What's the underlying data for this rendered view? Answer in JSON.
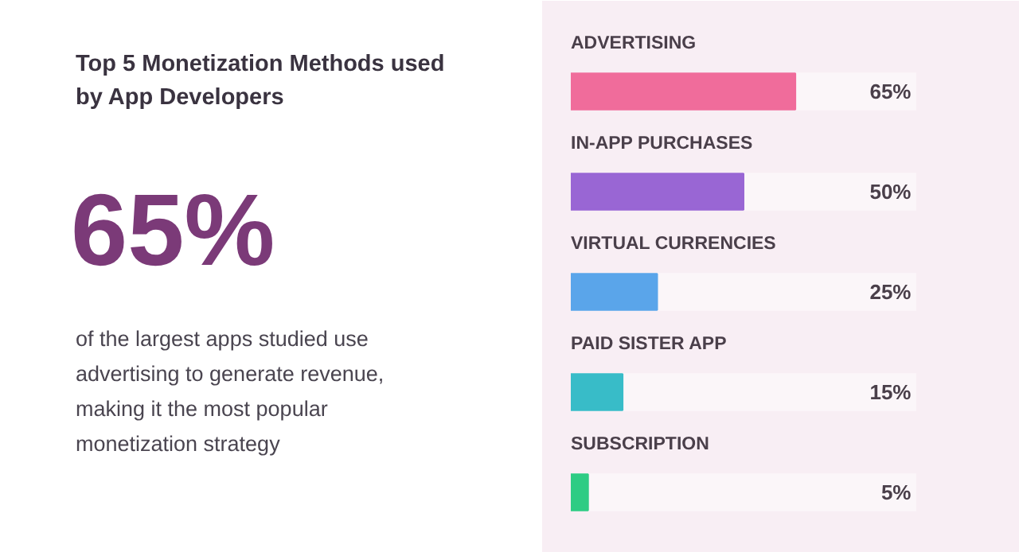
{
  "chart_data": {
    "type": "bar",
    "orientation": "horizontal",
    "title": "Top 5 Monetization Methods used by App Developers",
    "categories": [
      "ADVERTISING",
      "IN-APP PURCHASES",
      "VIRTUAL CURRENCIES",
      "PAID SISTER APP",
      "SUBSCRIPTION"
    ],
    "values": [
      65,
      50,
      25,
      15,
      5
    ],
    "colors": [
      "#f06c9b",
      "#9966d4",
      "#5aa5ea",
      "#38bcc8",
      "#2ecc84"
    ],
    "value_labels": [
      "65%",
      "50%",
      "25%",
      "15%",
      "5%"
    ],
    "xlim": [
      0,
      100
    ],
    "tick_labels": false,
    "grid": false,
    "annotations": [
      "65%",
      "of the largest apps studied use advertising to generate revenue, making it the most popular monetization strategy"
    ]
  }
}
